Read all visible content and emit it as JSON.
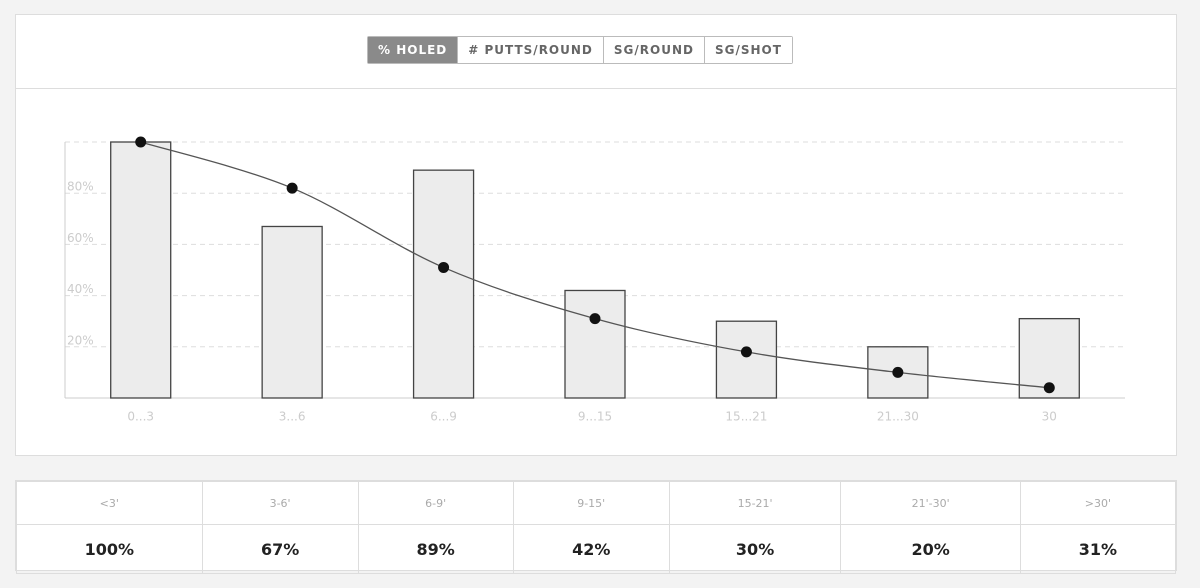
{
  "tabs": {
    "items": [
      "% HOLED",
      "# PUTTS/ROUND",
      "SG/ROUND",
      "SG/SHOT"
    ],
    "active": 0
  },
  "chart_data": {
    "type": "bar",
    "categories": [
      "0...3",
      "3...6",
      "6...9",
      "9...15",
      "15...21",
      "21...30",
      "30"
    ],
    "series": [
      {
        "type": "bar",
        "color": "#ececec",
        "values": [
          100,
          67,
          89,
          42,
          30,
          20,
          31
        ]
      },
      {
        "type": "line",
        "color": "#555555",
        "values": [
          100,
          82,
          51,
          31,
          18,
          10,
          4
        ]
      }
    ],
    "ylim": [
      0,
      100
    ],
    "yticks": [
      {
        "value": 20,
        "label": "20%"
      },
      {
        "value": 40,
        "label": "40%"
      },
      {
        "value": 60,
        "label": "60%"
      },
      {
        "value": 80,
        "label": "80%"
      }
    ],
    "grid": true
  },
  "table": {
    "headers": [
      "<3'",
      "3-6'",
      "6-9'",
      "9-15'",
      "15-21'",
      "21'-30'",
      ">30'"
    ],
    "values": [
      "100%",
      "67%",
      "89%",
      "42%",
      "30%",
      "20%",
      "31%"
    ]
  }
}
